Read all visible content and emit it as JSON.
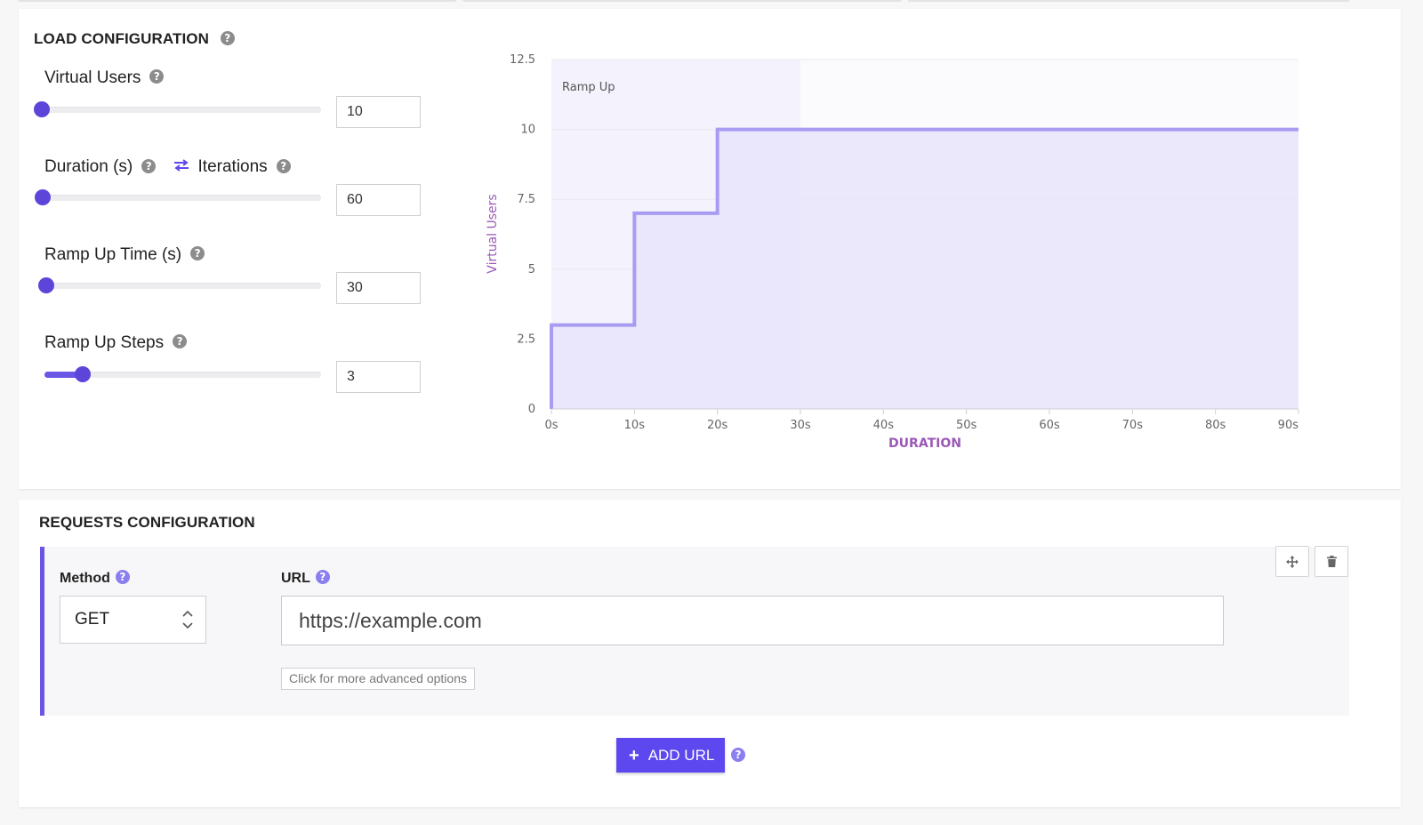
{
  "load_config": {
    "title": "LOAD CONFIGURATION",
    "fields": [
      {
        "label": "Virtual Users",
        "value": "10",
        "slider_fraction": 0.0
      },
      {
        "label": "Duration (s)",
        "alt_label": "Iterations",
        "value": "60",
        "slider_fraction": 0.0
      },
      {
        "label": "Ramp Up Time (s)",
        "value": "30",
        "slider_fraction": 0.0
      },
      {
        "label": "Ramp Up Steps",
        "value": "3",
        "slider_fraction": 0.14
      }
    ]
  },
  "chart_data": {
    "type": "line",
    "ylabel": "Virtual Users",
    "xlabel": "DURATION",
    "annotation": "Ramp Up",
    "ramp_up_end": 30,
    "xlim": [
      0,
      90
    ],
    "ylim": [
      0,
      12.5
    ],
    "x_ticks": [
      "0s",
      "10s",
      "20s",
      "30s",
      "40s",
      "50s",
      "60s",
      "70s",
      "80s",
      "90s"
    ],
    "y_ticks": [
      "0",
      "2.5",
      "5",
      "7.5",
      "10",
      "12.5"
    ],
    "step_points": [
      {
        "x": 0,
        "y": 0
      },
      {
        "x": 0,
        "y": 3
      },
      {
        "x": 10,
        "y": 3
      },
      {
        "x": 10,
        "y": 7
      },
      {
        "x": 20,
        "y": 7
      },
      {
        "x": 20,
        "y": 10
      },
      {
        "x": 90,
        "y": 10
      }
    ],
    "grid": true,
    "colors": {
      "line": "#a89cf2",
      "fill": "#e7e4fb",
      "ramp_band": "#f4f3fd",
      "label": "#9b59b6"
    }
  },
  "requests_config": {
    "title": "REQUESTS CONFIGURATION",
    "method_label": "Method",
    "method_value": "GET",
    "url_label": "URL",
    "url_value": "https://example.com",
    "advanced_label": "Click for more advanced options",
    "add_url_label": "ADD URL"
  },
  "colors": {
    "accent": "#6a56e4",
    "button": "#5d48f0"
  }
}
